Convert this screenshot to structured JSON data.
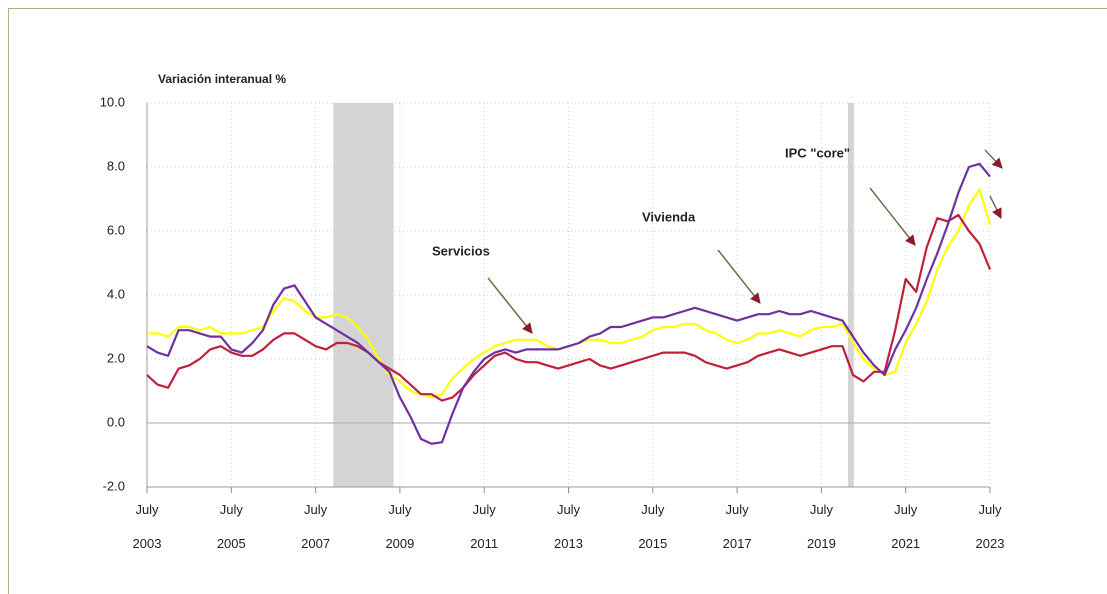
{
  "chart_data": {
    "type": "line",
    "ylabel": "Variación interanual %",
    "annotations": [
      "Servicios",
      "Vivienda",
      "IPC \"core\""
    ],
    "x": [
      2003.5,
      2003.75,
      2004,
      2004.25,
      2004.5,
      2004.75,
      2005,
      2005.25,
      2005.5,
      2005.75,
      2006,
      2006.25,
      2006.5,
      2006.75,
      2007,
      2007.25,
      2007.5,
      2007.75,
      2008,
      2008.25,
      2008.5,
      2008.75,
      2009,
      2009.25,
      2009.5,
      2009.75,
      2010,
      2010.25,
      2010.5,
      2010.75,
      2011,
      2011.25,
      2011.5,
      2011.75,
      2012,
      2012.25,
      2012.5,
      2012.75,
      2013,
      2013.25,
      2013.5,
      2013.75,
      2014,
      2014.25,
      2014.5,
      2014.75,
      2015,
      2015.25,
      2015.5,
      2015.75,
      2016,
      2016.25,
      2016.5,
      2016.75,
      2017,
      2017.25,
      2017.5,
      2017.75,
      2018,
      2018.25,
      2018.5,
      2018.75,
      2019,
      2019.25,
      2019.5,
      2019.75,
      2020,
      2020.25,
      2020.5,
      2020.75,
      2021,
      2021.25,
      2021.5,
      2021.75,
      2022,
      2022.25,
      2022.5,
      2022.75,
      2023,
      2023.25,
      2023.5
    ],
    "series": [
      {
        "color": "#ffff00",
        "values": [
          2.8,
          2.8,
          2.7,
          3.0,
          3.0,
          2.9,
          3.0,
          2.8,
          2.8,
          2.8,
          2.9,
          3.0,
          3.5,
          3.9,
          3.8,
          3.5,
          3.3,
          3.3,
          3.4,
          3.3,
          3.0,
          2.6,
          2.0,
          1.5,
          1.3,
          1.0,
          0.9,
          0.8,
          0.9,
          1.4,
          1.7,
          2.0,
          2.2,
          2.4,
          2.5,
          2.6,
          2.6,
          2.6,
          2.4,
          2.3,
          2.4,
          2.5,
          2.6,
          2.6,
          2.5,
          2.5,
          2.6,
          2.7,
          2.9,
          3.0,
          3.0,
          3.1,
          3.1,
          2.9,
          2.8,
          2.6,
          2.5,
          2.6,
          2.8,
          2.8,
          2.9,
          2.8,
          2.7,
          2.9,
          3.0,
          3.0,
          3.1,
          2.5,
          2.0,
          1.7,
          1.5,
          1.6,
          2.5,
          3.1,
          3.8,
          4.8,
          5.5,
          6.0,
          6.8,
          7.3,
          6.2
        ]
      },
      {
        "color": "#c0203a",
        "values": [
          1.5,
          1.2,
          1.1,
          1.7,
          1.8,
          2.0,
          2.3,
          2.4,
          2.2,
          2.1,
          2.1,
          2.3,
          2.6,
          2.8,
          2.8,
          2.6,
          2.4,
          2.3,
          2.5,
          2.5,
          2.4,
          2.2,
          1.9,
          1.7,
          1.5,
          1.2,
          0.9,
          0.9,
          0.7,
          0.8,
          1.1,
          1.5,
          1.8,
          2.1,
          2.2,
          2.0,
          1.9,
          1.9,
          1.8,
          1.7,
          1.8,
          1.9,
          2.0,
          1.8,
          1.7,
          1.8,
          1.9,
          2.0,
          2.1,
          2.2,
          2.2,
          2.2,
          2.1,
          1.9,
          1.8,
          1.7,
          1.8,
          1.9,
          2.1,
          2.2,
          2.3,
          2.2,
          2.1,
          2.2,
          2.3,
          2.4,
          2.4,
          1.5,
          1.3,
          1.6,
          1.6,
          2.9,
          4.5,
          4.1,
          5.5,
          6.4,
          6.3,
          6.5,
          6.0,
          5.6,
          4.8
        ]
      },
      {
        "color": "#7030a0",
        "values": [
          2.4,
          2.2,
          2.1,
          2.9,
          2.9,
          2.8,
          2.7,
          2.7,
          2.3,
          2.2,
          2.5,
          2.9,
          3.7,
          4.2,
          4.3,
          3.8,
          3.3,
          3.1,
          2.9,
          2.7,
          2.5,
          2.2,
          1.9,
          1.6,
          0.8,
          0.2,
          -0.5,
          -0.65,
          -0.6,
          0.3,
          1.1,
          1.6,
          2.0,
          2.2,
          2.3,
          2.2,
          2.3,
          2.3,
          2.3,
          2.3,
          2.4,
          2.5,
          2.7,
          2.8,
          3.0,
          3.0,
          3.1,
          3.2,
          3.3,
          3.3,
          3.4,
          3.5,
          3.6,
          3.5,
          3.4,
          3.3,
          3.2,
          3.3,
          3.4,
          3.4,
          3.5,
          3.4,
          3.4,
          3.5,
          3.4,
          3.3,
          3.2,
          2.7,
          2.2,
          1.8,
          1.5,
          2.3,
          2.9,
          3.6,
          4.5,
          5.3,
          6.2,
          7.2,
          8.0,
          8.1,
          7.7
        ]
      }
    ],
    "shaded_periods": [
      [
        2007.92,
        2009.35
      ],
      [
        2020.13,
        2020.27
      ]
    ],
    "xlim": [
      2003.5,
      2023.5
    ],
    "xticks": [
      {
        "value": 2003.5,
        "label": "July 2003"
      },
      {
        "value": 2005.5,
        "label": "July 2005"
      },
      {
        "value": 2007.5,
        "label": "July 2007"
      },
      {
        "value": 2009.5,
        "label": "July 2009"
      },
      {
        "value": 2011.5,
        "label": "July 2011"
      },
      {
        "value": 2013.5,
        "label": "July 2013"
      },
      {
        "value": 2015.5,
        "label": "July 2015"
      },
      {
        "value": 2017.5,
        "label": "July 2017"
      },
      {
        "value": 2019.5,
        "label": "July 2019"
      },
      {
        "value": 2021.5,
        "label": "July 2021"
      },
      {
        "value": 2023.5,
        "label": "July 2023"
      }
    ],
    "ylim": [
      -2,
      10
    ],
    "yticks": [
      {
        "value": -2,
        "label": "-2.0"
      },
      {
        "value": 0,
        "label": "0.0"
      },
      {
        "value": 2,
        "label": "2.0"
      },
      {
        "value": 4,
        "label": "4.0"
      },
      {
        "value": 6,
        "label": "6.0"
      },
      {
        "value": 8,
        "label": "8.0"
      },
      {
        "value": 10,
        "label": "10.0"
      }
    ],
    "grid": true
  }
}
